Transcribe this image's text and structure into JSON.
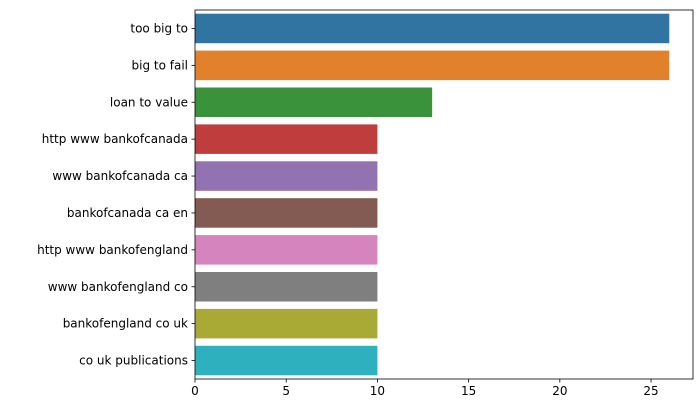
{
  "chart_data": {
    "type": "bar",
    "orientation": "horizontal",
    "categories": [
      "too big to",
      "big to fail",
      "loan to value",
      "http www bankofcanada",
      "www bankofcanada ca",
      "bankofcanada ca en",
      "http www bankofengland",
      "www bankofengland co",
      "bankofengland co uk",
      "co uk publications"
    ],
    "values": [
      26,
      26,
      13,
      10,
      10,
      10,
      10,
      10,
      10,
      10
    ],
    "colors": [
      "#3274a1",
      "#e1812c",
      "#3a923a",
      "#c03d3e",
      "#9372b2",
      "#845b53",
      "#d684bd",
      "#7f7f7f",
      "#a9aa35",
      "#2eb0bf"
    ],
    "xlim": [
      0,
      27.3
    ],
    "xticks": [
      0,
      5,
      10,
      15,
      20,
      25
    ],
    "xlabel": "",
    "ylabel": "",
    "title": "",
    "grid": false
  }
}
